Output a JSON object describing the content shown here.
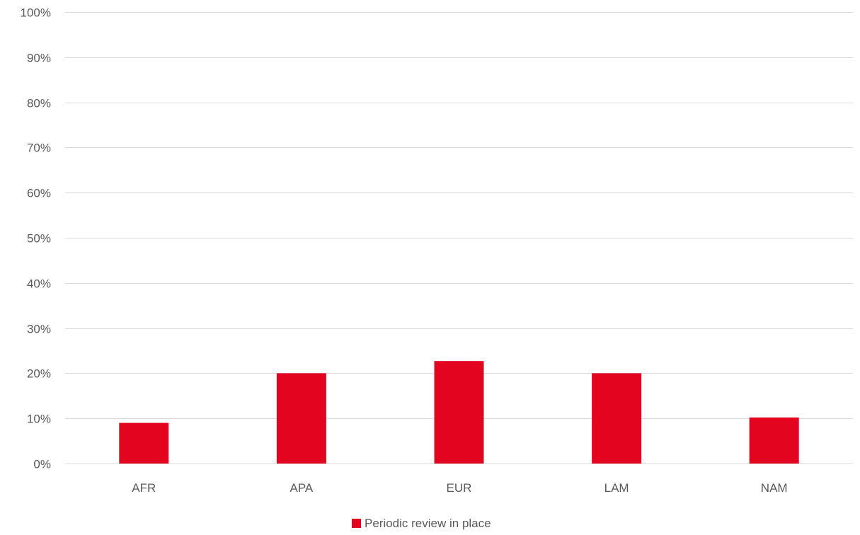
{
  "chart_data": {
    "type": "bar",
    "categories": [
      "AFR",
      "APA",
      "EUR",
      "LAM",
      "NAM"
    ],
    "series": [
      {
        "name": "Periodic review in place",
        "values": [
          0.09,
          0.2,
          0.227,
          0.2,
          0.102
        ]
      }
    ],
    "ylim": [
      0,
      1
    ],
    "yticks": [
      0,
      0.1,
      0.2,
      0.3,
      0.4,
      0.5,
      0.6,
      0.7,
      0.8,
      0.9,
      1.0
    ],
    "ytick_labels": [
      "0%",
      "10%",
      "20%",
      "30%",
      "40%",
      "50%",
      "60%",
      "70%",
      "80%",
      "90%",
      "100%"
    ],
    "title": "",
    "xlabel": "",
    "ylabel": "",
    "grid": true,
    "legend_position": "bottom",
    "colors": {
      "bar": "#e30420",
      "grid": "#d9d9d9",
      "text": "#595959"
    }
  }
}
